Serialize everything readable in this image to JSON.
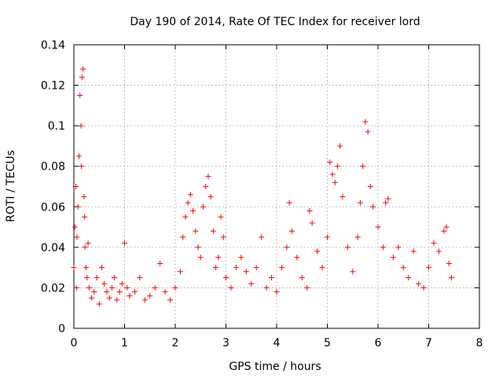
{
  "chart_data": {
    "type": "scatter",
    "title": "Day 190 of 2014, Rate Of TEC Index for receiver lord",
    "xlabel": "GPS time / hours",
    "ylabel": "ROTI / TECUs",
    "xlim": [
      0,
      8
    ],
    "ylim": [
      0,
      0.14
    ],
    "xticks": [
      "0",
      "1",
      "2",
      "3",
      "4",
      "5",
      "6",
      "7",
      "8"
    ],
    "yticks": [
      "0",
      "0.02",
      "0.04",
      "0.06",
      "0.08",
      "0.1",
      "0.12",
      "0.14"
    ],
    "grid": true,
    "marker": "+",
    "series": [
      {
        "name": "ROTI",
        "color": "#ff0000",
        "x": [
          0.0,
          0.02,
          0.04,
          0.05,
          0.06,
          0.08,
          0.1,
          0.12,
          0.14,
          0.15,
          0.16,
          0.18,
          0.2,
          0.21,
          0.22,
          0.24,
          0.26,
          0.28,
          0.3,
          0.35,
          0.4,
          0.45,
          0.5,
          0.55,
          0.6,
          0.65,
          0.7,
          0.75,
          0.8,
          0.85,
          0.9,
          0.95,
          1.0,
          1.05,
          1.1,
          1.2,
          1.3,
          1.4,
          1.5,
          1.6,
          1.7,
          1.8,
          1.9,
          2.0,
          2.1,
          2.15,
          2.2,
          2.25,
          2.3,
          2.35,
          2.4,
          2.45,
          2.5,
          2.55,
          2.6,
          2.65,
          2.7,
          2.75,
          2.8,
          2.85,
          2.9,
          2.95,
          3.0,
          3.1,
          3.2,
          3.3,
          3.4,
          3.5,
          3.6,
          3.7,
          3.8,
          3.9,
          4.0,
          4.1,
          4.2,
          4.25,
          4.3,
          4.4,
          4.5,
          4.6,
          4.65,
          4.7,
          4.8,
          4.9,
          5.0,
          5.05,
          5.1,
          5.15,
          5.2,
          5.25,
          5.3,
          5.4,
          5.5,
          5.6,
          5.65,
          5.7,
          5.75,
          5.8,
          5.85,
          5.9,
          6.0,
          6.1,
          6.15,
          6.2,
          6.3,
          6.4,
          6.5,
          6.6,
          6.7,
          6.8,
          6.9,
          7.0,
          7.1,
          7.2,
          7.3,
          7.35,
          7.4,
          7.45
        ],
        "y": [
          0.03,
          0.05,
          0.07,
          0.02,
          0.045,
          0.06,
          0.085,
          0.115,
          0.1,
          0.08,
          0.124,
          0.128,
          0.065,
          0.055,
          0.04,
          0.03,
          0.025,
          0.042,
          0.02,
          0.015,
          0.018,
          0.025,
          0.012,
          0.03,
          0.022,
          0.018,
          0.015,
          0.02,
          0.025,
          0.014,
          0.018,
          0.022,
          0.042,
          0.02,
          0.016,
          0.018,
          0.025,
          0.014,
          0.016,
          0.02,
          0.032,
          0.018,
          0.014,
          0.02,
          0.028,
          0.045,
          0.055,
          0.062,
          0.066,
          0.058,
          0.048,
          0.04,
          0.035,
          0.06,
          0.07,
          0.075,
          0.065,
          0.048,
          0.03,
          0.035,
          0.055,
          0.045,
          0.025,
          0.02,
          0.03,
          0.035,
          0.028,
          0.022,
          0.03,
          0.045,
          0.02,
          0.025,
          0.018,
          0.03,
          0.04,
          0.062,
          0.048,
          0.035,
          0.025,
          0.02,
          0.058,
          0.052,
          0.038,
          0.03,
          0.045,
          0.082,
          0.076,
          0.072,
          0.08,
          0.09,
          0.065,
          0.04,
          0.028,
          0.045,
          0.062,
          0.08,
          0.102,
          0.097,
          0.07,
          0.06,
          0.05,
          0.04,
          0.062,
          0.064,
          0.035,
          0.04,
          0.03,
          0.025,
          0.038,
          0.022,
          0.02,
          0.03,
          0.042,
          0.038,
          0.048,
          0.05,
          0.032,
          0.025
        ]
      }
    ]
  }
}
